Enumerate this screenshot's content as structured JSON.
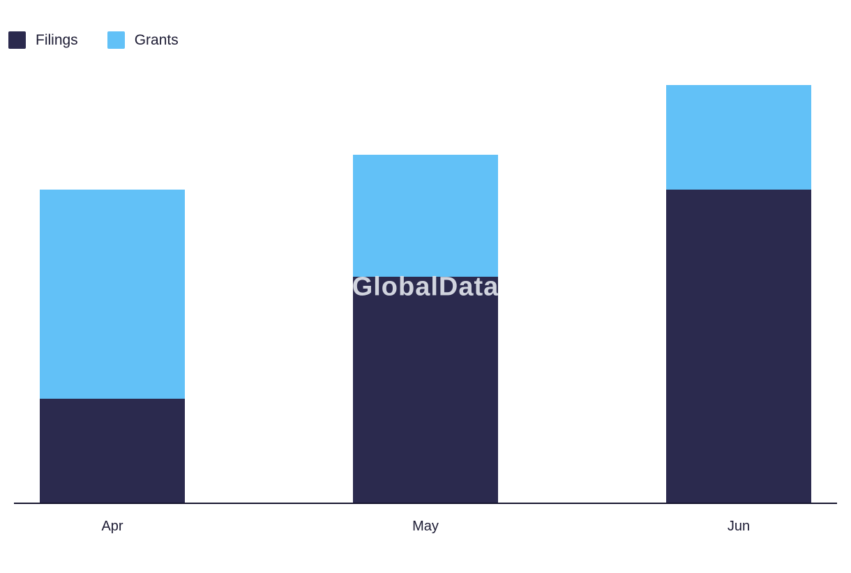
{
  "watermark": "GlobalData",
  "legend": {
    "items": [
      {
        "label": "Filings",
        "color": "#2b2a4e"
      },
      {
        "label": "Grants",
        "color": "#62c1f7"
      }
    ]
  },
  "chart_data": {
    "type": "bar",
    "stacked": true,
    "title": "",
    "xlabel": "",
    "ylabel": "",
    "categories": [
      "Apr",
      "May",
      "Jun"
    ],
    "series": [
      {
        "name": "Filings",
        "color": "#2b2a4e",
        "values": [
          150,
          325,
          450
        ]
      },
      {
        "name": "Grants",
        "color": "#62c1f7",
        "values": [
          300,
          175,
          150
        ]
      }
    ],
    "totals": [
      450,
      500,
      600
    ],
    "ylim": [
      0,
      620
    ],
    "grid": false,
    "y_axis_visible": false,
    "legend_position": "top-left"
  }
}
